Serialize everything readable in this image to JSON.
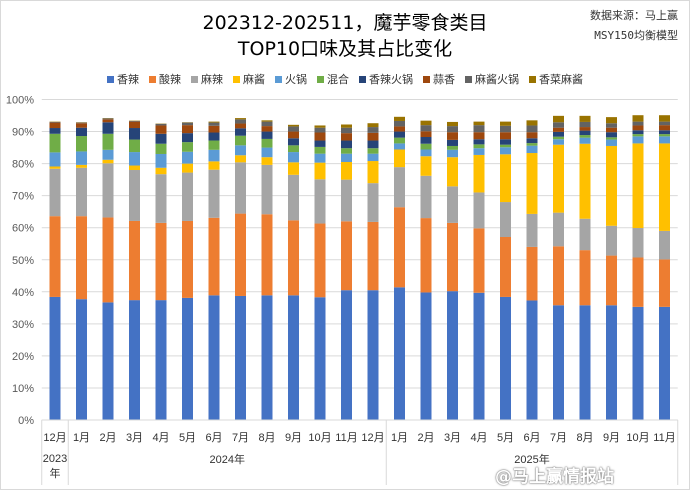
{
  "title_line1": "202312-202511，魔芋零食类目",
  "title_line2": "TOP10口味及其占比变化",
  "source_line1": "数据来源：马上赢",
  "source_line2": "MSY150均衡模型",
  "watermark": "@马上赢情报站",
  "chart_data": {
    "type": "bar",
    "stacked": true,
    "title": "202312-202511，魔芋零食类目 TOP10口味及其占比变化",
    "ylim": [
      0,
      100
    ],
    "yticks": [
      "0%",
      "10%",
      "20%",
      "30%",
      "40%",
      "50%",
      "60%",
      "70%",
      "80%",
      "90%",
      "100%"
    ],
    "grid": true,
    "legend_position": "top",
    "categories": [
      "12月",
      "1月",
      "2月",
      "3月",
      "4月",
      "5月",
      "6月",
      "7月",
      "8月",
      "9月",
      "10月",
      "11月",
      "12月",
      "1月",
      "2月",
      "3月",
      "4月",
      "5月",
      "6月",
      "7月",
      "8月",
      "9月",
      "10月",
      "11月"
    ],
    "year_groups": [
      {
        "label": "2023年",
        "count": 1
      },
      {
        "label": "2024年",
        "count": 12
      },
      {
        "label": "2025年",
        "count": 11
      }
    ],
    "series": [
      {
        "name": "香辣",
        "color": "#4472C4",
        "values": [
          38.4,
          37.7,
          36.7,
          37.4,
          37.4,
          38.1,
          38.9,
          38.7,
          38.9,
          38.9,
          38.3,
          40.5,
          40.5,
          41.4,
          39.8,
          40.2,
          39.7,
          38.4,
          37.3,
          35.8,
          35.8,
          35.8,
          35.3,
          35.3
        ]
      },
      {
        "name": "酸辣",
        "color": "#ED7D31",
        "values": [
          25.2,
          25.9,
          26.5,
          24.7,
          24.1,
          24.0,
          24.2,
          25.7,
          25.3,
          23.4,
          23.0,
          21.5,
          21.3,
          25.0,
          23.2,
          21.3,
          20.1,
          18.7,
          16.7,
          18.4,
          17.2,
          15.5,
          15.4,
          14.8
        ]
      },
      {
        "name": "麻辣",
        "color": "#A5A5A5",
        "values": [
          14.8,
          15.1,
          16.9,
          15.9,
          15.2,
          15.1,
          15.0,
          16.0,
          15.4,
          14.2,
          13.8,
          13.0,
          12.1,
          12.5,
          13.2,
          11.4,
          11.2,
          10.9,
          10.3,
          10.5,
          9.8,
          9.3,
          9.2,
          8.9
        ]
      },
      {
        "name": "麻酱",
        "color": "#FFC000",
        "values": [
          0.7,
          0.9,
          1.1,
          1.4,
          2.0,
          2.8,
          2.6,
          2.2,
          2.4,
          3.9,
          5.2,
          5.5,
          6.9,
          5.5,
          6.1,
          9.1,
          11.7,
          14.9,
          19.0,
          21.2,
          23.4,
          24.9,
          26.4,
          27.3
        ]
      },
      {
        "name": "火锅",
        "color": "#5B9BD5",
        "values": [
          4.4,
          4.2,
          3.1,
          4.2,
          4.3,
          3.7,
          3.6,
          3.1,
          3.0,
          3.2,
          2.8,
          2.6,
          2.3,
          1.9,
          2.1,
          2.3,
          2.1,
          2.2,
          2.3,
          1.7,
          1.9,
          2.0,
          2.2,
          2.2
        ]
      },
      {
        "name": "混合",
        "color": "#70AD47",
        "values": [
          5.8,
          4.8,
          5.0,
          3.9,
          3.2,
          3.0,
          2.9,
          3.0,
          2.7,
          2.1,
          2.1,
          1.7,
          1.7,
          1.8,
          1.8,
          1.2,
          1.2,
          0.8,
          0.8,
          0.8,
          0.8,
          0.7,
          0.7,
          0.7
        ]
      },
      {
        "name": "香辣火锅",
        "color": "#264478",
        "values": [
          1.8,
          2.6,
          3.6,
          3.6,
          3.1,
          2.8,
          2.5,
          2.3,
          2.3,
          2.2,
          2.0,
          2.4,
          2.4,
          1.9,
          2.1,
          1.9,
          1.6,
          1.7,
          1.5,
          1.5,
          1.4,
          1.6,
          1.2,
          1.2
        ]
      },
      {
        "name": "蒜香",
        "color": "#9E480E",
        "values": [
          1.7,
          1.4,
          0.9,
          2.0,
          2.6,
          2.5,
          2.1,
          1.5,
          1.7,
          2.1,
          2.5,
          2.3,
          2.4,
          1.6,
          1.8,
          2.4,
          2.2,
          2.2,
          1.9,
          1.3,
          1.1,
          1.4,
          1.5,
          1.6
        ]
      },
      {
        "name": "麻酱火锅",
        "color": "#636363",
        "values": [
          0.2,
          0.2,
          0.3,
          0.2,
          0.5,
          0.8,
          1.0,
          1.3,
          1.4,
          1.6,
          1.5,
          1.7,
          1.8,
          1.7,
          1.9,
          1.9,
          2.2,
          2.0,
          2.1,
          1.7,
          1.6,
          1.4,
          1.2,
          1.1
        ]
      },
      {
        "name": "香菜麻酱",
        "color": "#997300",
        "values": [
          0.1,
          0.1,
          0.1,
          0.1,
          0.1,
          0.1,
          0.3,
          0.4,
          0.4,
          0.5,
          0.7,
          1.0,
          1.2,
          1.3,
          1.4,
          1.3,
          1.1,
          1.3,
          1.6,
          2.0,
          1.9,
          1.9,
          2.0,
          2.0
        ]
      }
    ]
  }
}
